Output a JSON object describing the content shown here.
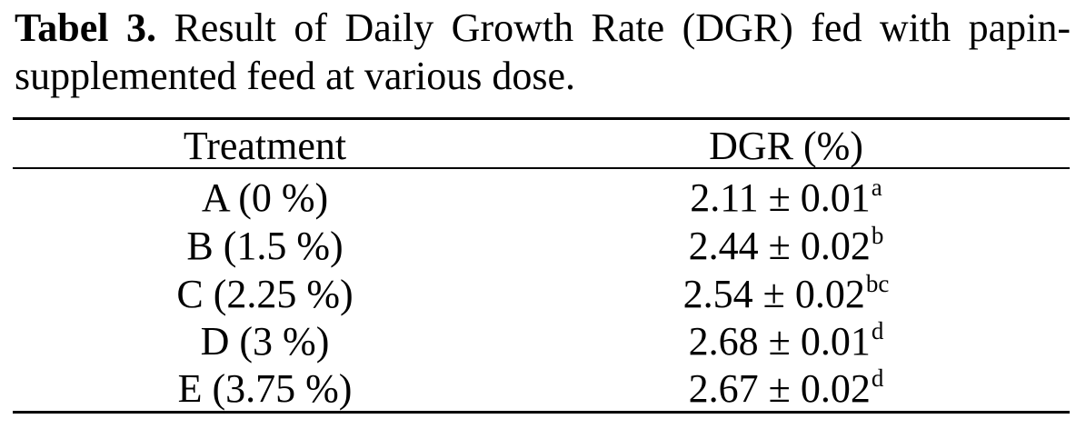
{
  "caption": {
    "label": "Tabel 3.",
    "text": "Result of Daily Growth Rate (DGR) fed with papin-supplemented feed at various dose."
  },
  "table": {
    "headers": [
      "Treatment",
      "DGR (%)"
    ],
    "rows": [
      {
        "treatment": "A (0 %)",
        "dgr": "2.11 ± 0.01",
        "sig": "a"
      },
      {
        "treatment": "B (1.5 %)",
        "dgr": "2.44 ± 0.02",
        "sig": "b"
      },
      {
        "treatment": "C (2.25 %)",
        "dgr": "2.54 ± 0.02",
        "sig": "bc"
      },
      {
        "treatment": "D (3 %)",
        "dgr": "2.68 ± 0.01",
        "sig": "d"
      },
      {
        "treatment": "E (3.75 %)",
        "dgr": "2.67 ± 0.02",
        "sig": "d"
      }
    ]
  }
}
